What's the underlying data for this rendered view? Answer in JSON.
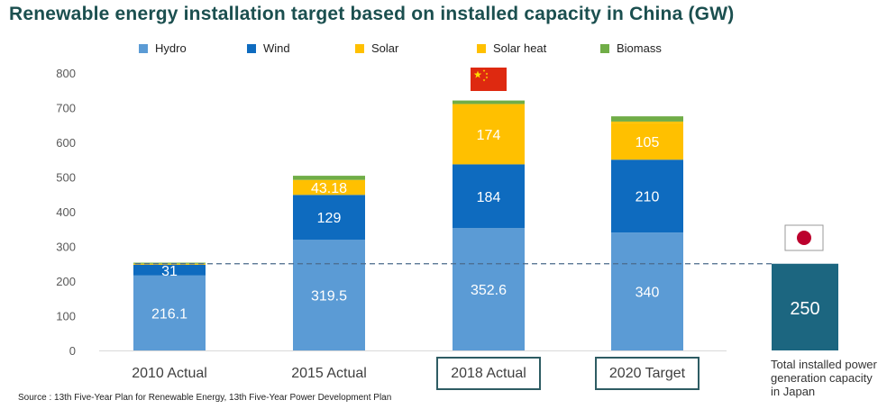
{
  "title": "Renewable energy installation target based on installed capacity in China (GW)",
  "source": "Source : 13th Five-Year Plan for Renewable Energy, 13th Five-Year Power Development Plan",
  "japan_note": "Total installed power generation capacity in Japan",
  "colors": {
    "hydro": "#5b9bd5",
    "wind": "#0e6bbf",
    "solar": "#ffc000",
    "solar_heat": "#ffc000",
    "biomass": "#70ad47",
    "japan_bar": "#1c6680",
    "reference_line": "#4a6a8a",
    "axis": "#d9d9d9"
  },
  "chart_data": {
    "type": "bar",
    "stacked": true,
    "categories": [
      "2010 Actual",
      "2015 Actual",
      "2018 Actual",
      "2020 Target"
    ],
    "highlighted_categories": [
      "2018 Actual",
      "2020 Target"
    ],
    "ylim": [
      0,
      800
    ],
    "yticks": [
      0,
      100,
      200,
      300,
      400,
      500,
      600,
      700,
      800
    ],
    "grid": false,
    "legend_position": "top",
    "series": [
      {
        "name": "Hydro",
        "color_key": "hydro",
        "values": [
          216.1,
          319.5,
          352.6,
          340
        ],
        "labels": [
          "216.1",
          "319.5",
          "352.6",
          "340"
        ]
      },
      {
        "name": "Wind",
        "color_key": "wind",
        "values": [
          31,
          129,
          184,
          210
        ],
        "labels": [
          "31",
          "129",
          "184",
          "210"
        ]
      },
      {
        "name": "Solar",
        "color_key": "solar",
        "values": [
          3,
          43.18,
          174,
          105
        ],
        "labels": [
          "",
          "43.18",
          "174",
          "105"
        ]
      },
      {
        "name": "Solar heat",
        "color_key": "solar_heat",
        "values": [
          0,
          0,
          0,
          5
        ],
        "labels": [
          "",
          "",
          "",
          ""
        ]
      },
      {
        "name": "Biomass",
        "color_key": "biomass",
        "values": [
          3,
          12,
          10,
          15
        ],
        "labels": [
          "",
          "",
          "",
          ""
        ]
      }
    ],
    "reference": {
      "value": 250,
      "label": "250"
    },
    "flags": {
      "china": "china-flag-icon",
      "japan": "japan-flag-icon"
    }
  }
}
